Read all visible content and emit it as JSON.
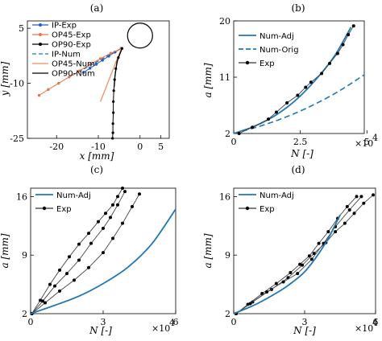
{
  "colors": {
    "exp_ip": "#1f5fbf",
    "exp_op45": "#e8734a",
    "exp_op90": "#000000",
    "num": "#1f77b4",
    "orig_dash": "#1f77b4",
    "op45_num": "#f28e62",
    "gray": "#555555"
  },
  "chart_data": [
    {
      "panel": "(a)",
      "type": "line",
      "xlabel": "x [mm]",
      "ylabel": "y [mm]",
      "xlim": [
        -27,
        7
      ],
      "ylim": [
        -25,
        7
      ],
      "xticks": [
        "-20",
        "-10",
        "0",
        "5"
      ],
      "yticks": [
        "5",
        "-10",
        "-25"
      ],
      "legend": [
        "IP-Exp",
        "OP45-Exp",
        "OP90-Exp",
        "IP-Num",
        "OP45-Num",
        "OP90-Num"
      ],
      "hole": {
        "cx": 0,
        "cy": 3,
        "r": 3
      },
      "series": [
        {
          "name": "IP-Exp",
          "x": [
            -4.5,
            -6,
            -7.5,
            -9,
            -10.5,
            -12,
            -13.5
          ],
          "y": [
            -0.5,
            -1.5,
            -2.6,
            -3.7,
            -4.8,
            -5.9,
            -7
          ]
        },
        {
          "name": "OP45-Exp",
          "x": [
            -4.5,
            -7,
            -9.5,
            -12,
            -14.5,
            -17,
            -19.5,
            -22,
            -24.2
          ],
          "y": [
            -0.6,
            -1.8,
            -3.3,
            -4.9,
            -6.6,
            -8.3,
            -10.0,
            -11.7,
            -13.3
          ]
        },
        {
          "name": "OP90-Exp",
          "x": [
            -4.3,
            -5.2,
            -5.8,
            -6.1,
            -6.3,
            -6.4,
            -6.4,
            -6.5,
            -6.5,
            -6.6
          ],
          "y": [
            -0.5,
            -3,
            -6,
            -9,
            -12,
            -15,
            -18,
            -21,
            -23.5,
            -25
          ]
        },
        {
          "name": "IP-Num",
          "x": [
            -4.5,
            -16.5
          ],
          "y": [
            -0.5,
            -8
          ]
        },
        {
          "name": "OP45-Num",
          "x": [
            -4.5,
            -9.5
          ],
          "y": [
            -0.5,
            -15
          ]
        },
        {
          "name": "OP90-Num",
          "x": [
            -4.3,
            -5.5,
            -6,
            -6.2
          ],
          "y": [
            -0.5,
            -4,
            -8,
            -11
          ]
        }
      ]
    },
    {
      "panel": "(b)",
      "type": "line",
      "xlabel": "N [-]",
      "ylabel": "a [mm]",
      "xexp": "×10^4",
      "xlim": [
        0,
        4.9
      ],
      "ylim": [
        2,
        20
      ],
      "xticks": [
        "0",
        "2.5",
        "5"
      ],
      "yticks": [
        "2",
        "11",
        "20"
      ],
      "legend": [
        "Num-Adj",
        "Num-Orig",
        "Exp"
      ],
      "series": [
        {
          "name": "Num-Adj",
          "x": [
            0,
            0.8,
            1.6,
            2.4,
            3.2,
            3.8,
            4.4
          ],
          "y": [
            2,
            3.2,
            5.0,
            7.6,
            11.2,
            14.5,
            19.0
          ]
        },
        {
          "name": "Num-Orig",
          "x": [
            0,
            1.0,
            2.0,
            3.0,
            4.0,
            4.9
          ],
          "y": [
            2,
            3.2,
            4.7,
            6.6,
            8.9,
            11.4
          ]
        },
        {
          "name": "Exp",
          "x": [
            0.2,
            0.7,
            1.3,
            1.6,
            2.0,
            2.4,
            2.7,
            2.9,
            3.3,
            3.6,
            3.9,
            4.1,
            4.3,
            4.5
          ],
          "y": [
            2,
            3.0,
            4.3,
            5.4,
            6.9,
            8.1,
            9.4,
            10.2,
            11.6,
            13.2,
            14.8,
            16.2,
            17.8,
            19.2
          ]
        }
      ]
    },
    {
      "panel": "(c)",
      "type": "line",
      "xlabel": "N [-]",
      "ylabel": "a [mm]",
      "xexp": "×10^4",
      "xlim": [
        0,
        6
      ],
      "ylim": [
        2,
        17
      ],
      "xticks": [
        "0",
        "3",
        "6"
      ],
      "yticks": [
        "2",
        "9",
        "16"
      ],
      "legend": [
        "Num-Adj",
        "Exp"
      ],
      "series": [
        {
          "name": "Num-Adj",
          "x": [
            0,
            1,
            2,
            3,
            4,
            5,
            6
          ],
          "y": [
            2,
            3.0,
            4.1,
            5.6,
            7.5,
            10.3,
            14.5
          ]
        },
        {
          "name": "Exp 1",
          "x": [
            0.05,
            0.4,
            0.8,
            1.2,
            1.6,
            2.0,
            2.4,
            2.8,
            3.1,
            3.4,
            3.6,
            3.8
          ],
          "y": [
            2,
            3.6,
            5.5,
            7.2,
            8.8,
            10.3,
            11.6,
            13.0,
            14.0,
            15.0,
            16.0,
            17.0
          ]
        },
        {
          "name": "Exp 2",
          "x": [
            0.05,
            0.5,
            1.0,
            1.5,
            2.0,
            2.5,
            3.0,
            3.3,
            3.6,
            3.9
          ],
          "y": [
            2,
            3.5,
            5.3,
            6.8,
            8.4,
            10.4,
            12.2,
            13.5,
            15.0,
            16.6
          ]
        },
        {
          "name": "Exp 3",
          "x": [
            0.05,
            0.6,
            1.2,
            1.8,
            2.4,
            3.0,
            3.4,
            3.8,
            4.2,
            4.5
          ],
          "y": [
            2,
            3.3,
            4.7,
            6.0,
            7.5,
            9.3,
            11.0,
            12.8,
            14.8,
            16.3
          ]
        }
      ]
    },
    {
      "panel": "(d)",
      "type": "line",
      "xlabel": "N [-]",
      "ylabel": "a [mm]",
      "xexp": "×10^4",
      "xlim": [
        0,
        6
      ],
      "ylim": [
        2,
        17
      ],
      "xticks": [
        "0",
        "3",
        "6"
      ],
      "yticks": [
        "2",
        "9",
        "16"
      ],
      "legend": [
        "Num-Adj",
        "Exp"
      ],
      "series": [
        {
          "name": "Num-Adj",
          "x": [
            0,
            1,
            2,
            2.5,
            3,
            3.5,
            4,
            4.5
          ],
          "y": [
            2,
            3.2,
            4.8,
            5.8,
            7.0,
            8.8,
            11.0,
            13.8
          ]
        },
        {
          "name": "Exp 1",
          "x": [
            0.1,
            0.6,
            1.2,
            1.8,
            2.4,
            2.8,
            3.2,
            3.6,
            4.0,
            4.4,
            4.8,
            5.2
          ],
          "y": [
            2,
            3.1,
            4.4,
            5.6,
            6.9,
            7.9,
            8.9,
            10.4,
            11.8,
            13.4,
            14.8,
            16.0
          ]
        },
        {
          "name": "Exp 2",
          "x": [
            0.1,
            0.8,
            1.6,
            2.3,
            2.9,
            3.4,
            3.9,
            4.3,
            4.7,
            5.1,
            5.5,
            5.9
          ],
          "y": [
            2,
            3.4,
            4.9,
            6.3,
            7.8,
            9.2,
            10.5,
            11.8,
            12.8,
            14.0,
            15.2,
            16.2
          ]
        },
        {
          "name": "Exp 3",
          "x": [
            0.1,
            0.7,
            1.4,
            2.1,
            2.7,
            3.3,
            3.8,
            4.3,
            4.9,
            5.4
          ],
          "y": [
            2,
            3.2,
            4.6,
            5.8,
            6.8,
            8.5,
            10.4,
            12.4,
            14.4,
            16.0
          ]
        }
      ]
    }
  ],
  "labels": {
    "a_title": "(a)",
    "b_title": "(b)",
    "c_title": "(c)",
    "d_title": "(d)",
    "a_x": "x [mm]",
    "a_y": "y [mm]",
    "b_x": "N [-]",
    "b_y": "a [mm]",
    "c_x": "N [-]",
    "c_y": "a [mm]",
    "d_x": "N [-]",
    "d_y": "a [mm]",
    "exp10": "×10",
    "exp_pow": "4"
  }
}
